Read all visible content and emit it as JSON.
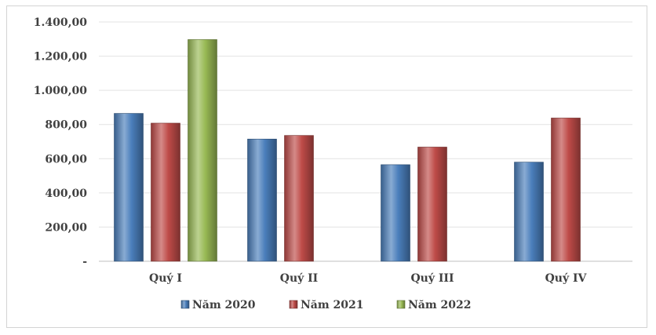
{
  "chart_data": {
    "type": "bar",
    "title": "",
    "xlabel": "",
    "ylabel": "",
    "categories": [
      "Quý I",
      "Quý II",
      "Quý III",
      "Quý IV"
    ],
    "series": [
      {
        "name": "Năm 2020",
        "color": "#4a7ebb",
        "values": [
          865,
          715,
          565,
          580
        ]
      },
      {
        "name": "Năm 2021",
        "color": "#be4b48",
        "values": [
          808,
          736,
          668,
          838
        ]
      },
      {
        "name": "Năm 2022",
        "color": "#98b954",
        "values": [
          1297,
          null,
          null,
          null
        ]
      }
    ],
    "ylim": [
      0,
      1400
    ],
    "yticks": [
      {
        "value": 0,
        "label": "-"
      },
      {
        "value": 200,
        "label": "200,00"
      },
      {
        "value": 400,
        "label": "400,00"
      },
      {
        "value": 600,
        "label": "600,00"
      },
      {
        "value": 800,
        "label": "800,00"
      },
      {
        "value": 1000,
        "label": "1.000,00"
      },
      {
        "value": 1200,
        "label": "1.200,00"
      },
      {
        "value": 1400,
        "label": "1.400,00"
      }
    ],
    "grid": true,
    "legend_position": "bottom"
  }
}
